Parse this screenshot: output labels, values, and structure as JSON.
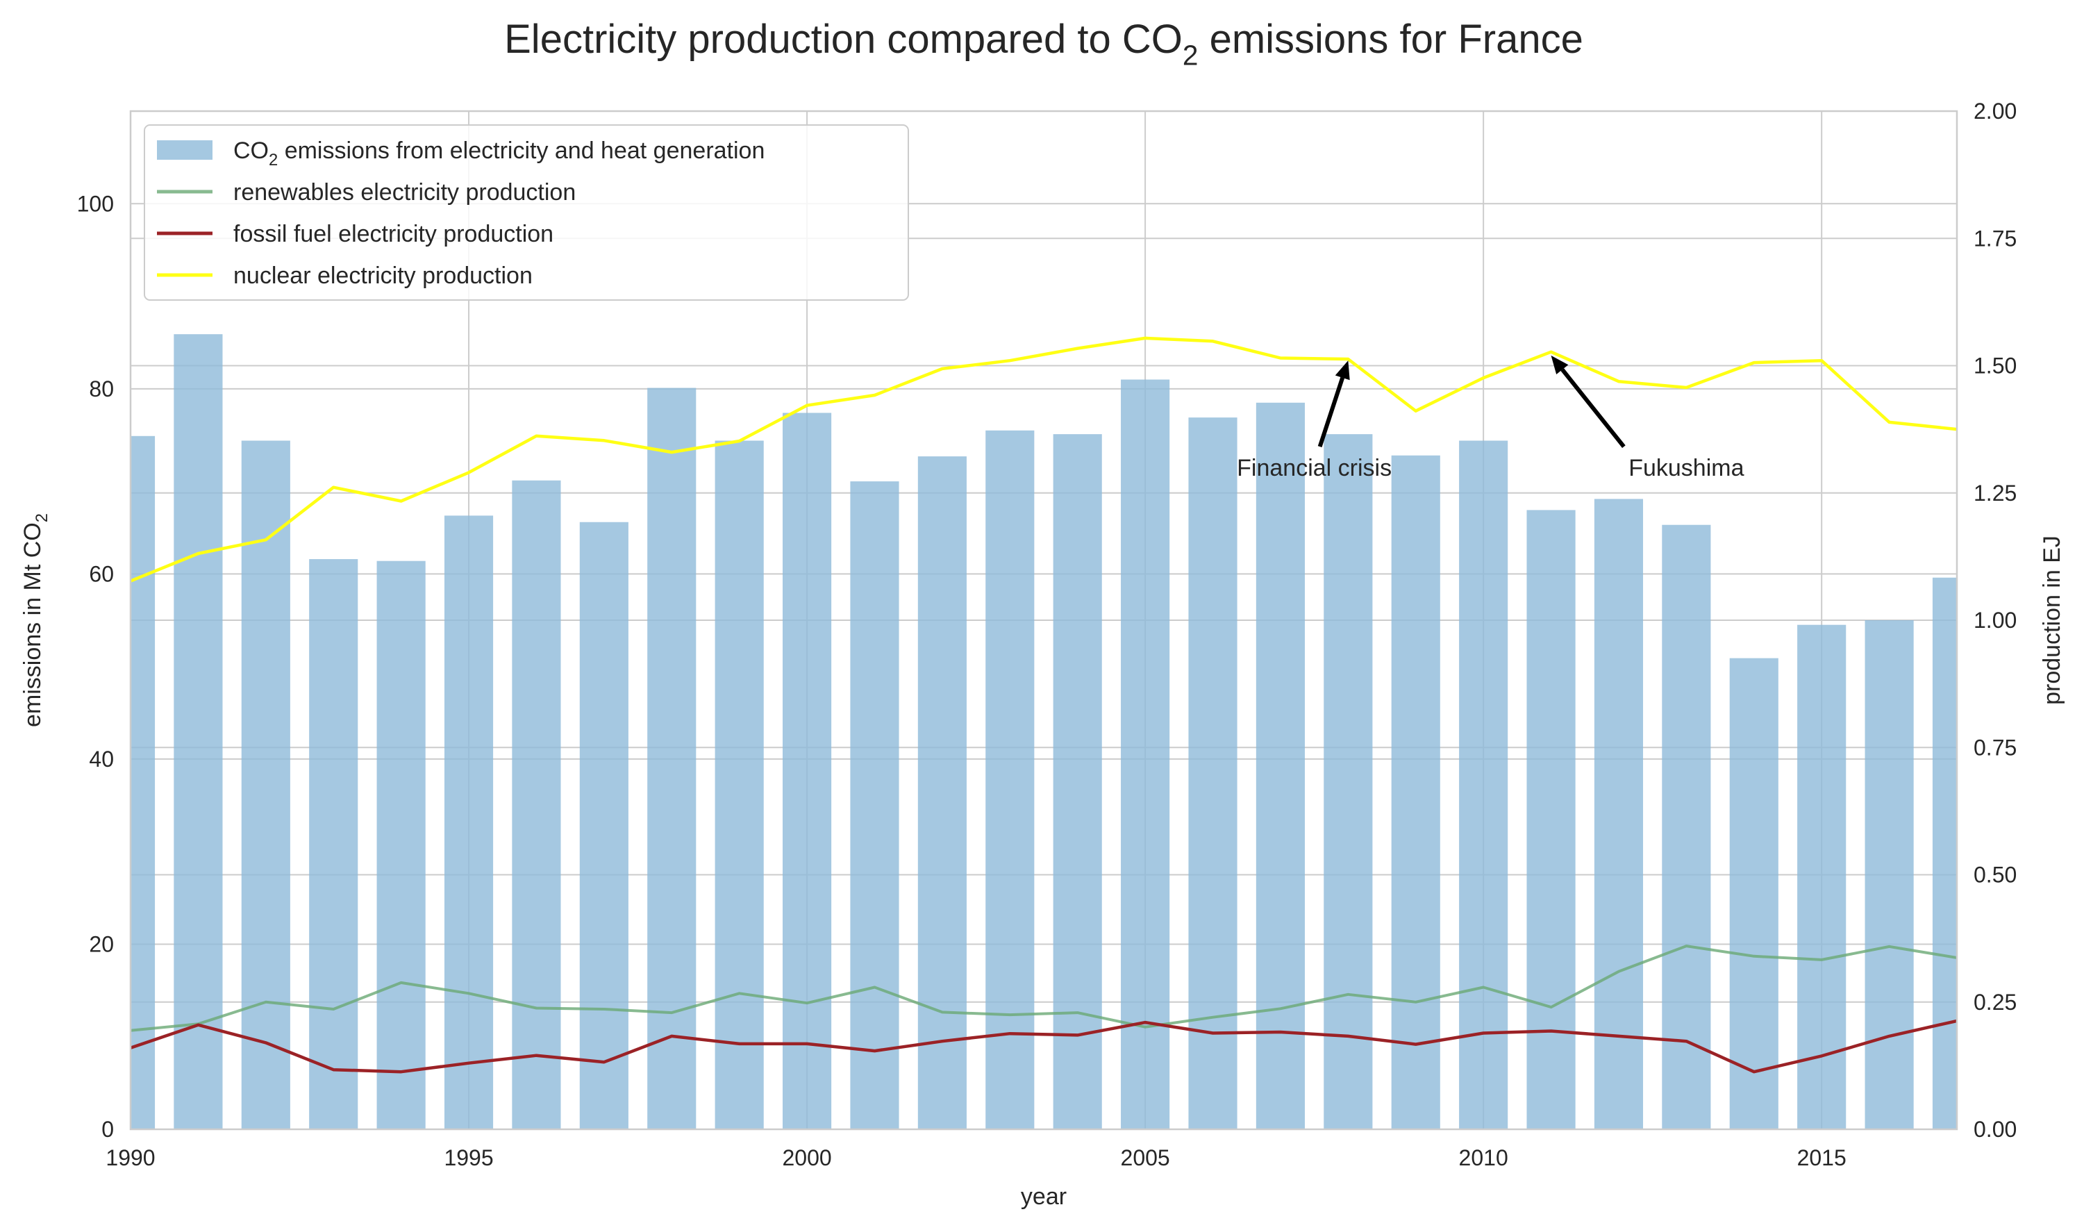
{
  "chart_data": {
    "type": "bar",
    "title_parts": [
      "Electricity production compared to CO",
      "2",
      " emissions for France"
    ],
    "xlabel": "year",
    "ylabel_left_parts": [
      "emissions in Mt CO",
      "2"
    ],
    "ylabel_right": "production in EJ",
    "xlim": [
      1990,
      2017
    ],
    "ylim_left": [
      0,
      110
    ],
    "ylim_right": [
      0,
      2.0
    ],
    "x_ticks": [
      "1990",
      "1995",
      "2000",
      "2005",
      "2010",
      "2015"
    ],
    "y_ticks_left": [
      "0",
      "20",
      "40",
      "60",
      "80",
      "100"
    ],
    "y_ticks_right": [
      "0.00",
      "0.25",
      "0.50",
      "0.75",
      "1.00",
      "1.25",
      "1.50",
      "1.75",
      "2.00"
    ],
    "grid": true,
    "legend_placement": "top-left",
    "years": [
      1990,
      1991,
      1992,
      1993,
      1994,
      1995,
      1996,
      1997,
      1998,
      1999,
      2000,
      2001,
      2002,
      2003,
      2004,
      2005,
      2006,
      2007,
      2008,
      2009,
      2010,
      2011,
      2012,
      2013,
      2014,
      2015,
      2016,
      2017
    ],
    "bars": {
      "name_parts": [
        "CO",
        "2",
        " emissions from electricity and heat generation"
      ],
      "axis": "left",
      "color": "#8fbad9",
      "values": [
        74.9,
        85.9,
        74.4,
        61.6,
        61.4,
        66.3,
        70.1,
        65.6,
        80.1,
        74.4,
        77.4,
        70.0,
        72.7,
        75.5,
        75.1,
        81.0,
        76.9,
        78.5,
        75.1,
        72.8,
        74.4,
        66.9,
        68.1,
        65.3,
        50.9,
        54.5,
        55.0,
        59.6
      ]
    },
    "series": [
      {
        "name": "renewables electricity production",
        "axis": "right",
        "color": "#6aa974",
        "values": [
          0.194,
          0.207,
          0.25,
          0.236,
          0.288,
          0.267,
          0.238,
          0.236,
          0.229,
          0.267,
          0.248,
          0.279,
          0.23,
          0.225,
          0.229,
          0.201,
          0.22,
          0.237,
          0.265,
          0.25,
          0.279,
          0.24,
          0.31,
          0.36,
          0.34,
          0.333,
          0.359,
          0.337
        ]
      },
      {
        "name": "fossil fuel electricity production",
        "axis": "right",
        "color": "#9b2226",
        "values": [
          0.16,
          0.205,
          0.17,
          0.117,
          0.113,
          0.13,
          0.145,
          0.132,
          0.183,
          0.168,
          0.168,
          0.154,
          0.173,
          0.188,
          0.185,
          0.21,
          0.189,
          0.191,
          0.183,
          0.167,
          0.189,
          0.193,
          0.183,
          0.173,
          0.113,
          0.144,
          0.183,
          0.213
        ]
      },
      {
        "name": "nuclear electricity production",
        "axis": "right",
        "color": "#ffff14",
        "values": [
          1.077,
          1.131,
          1.158,
          1.261,
          1.234,
          1.29,
          1.362,
          1.353,
          1.33,
          1.352,
          1.422,
          1.442,
          1.494,
          1.51,
          1.534,
          1.554,
          1.548,
          1.515,
          1.513,
          1.411,
          1.476,
          1.527,
          1.469,
          1.457,
          1.506,
          1.51,
          1.389,
          1.375
        ]
      }
    ],
    "annotations": [
      {
        "text": "Financial crisis",
        "x": 2008,
        "y": 1.51,
        "text_x": 2007.5,
        "text_y": 1.3
      },
      {
        "text": "Fukushima",
        "x": 2011,
        "y": 1.52,
        "text_x": 2013.0,
        "text_y": 1.3
      }
    ]
  }
}
